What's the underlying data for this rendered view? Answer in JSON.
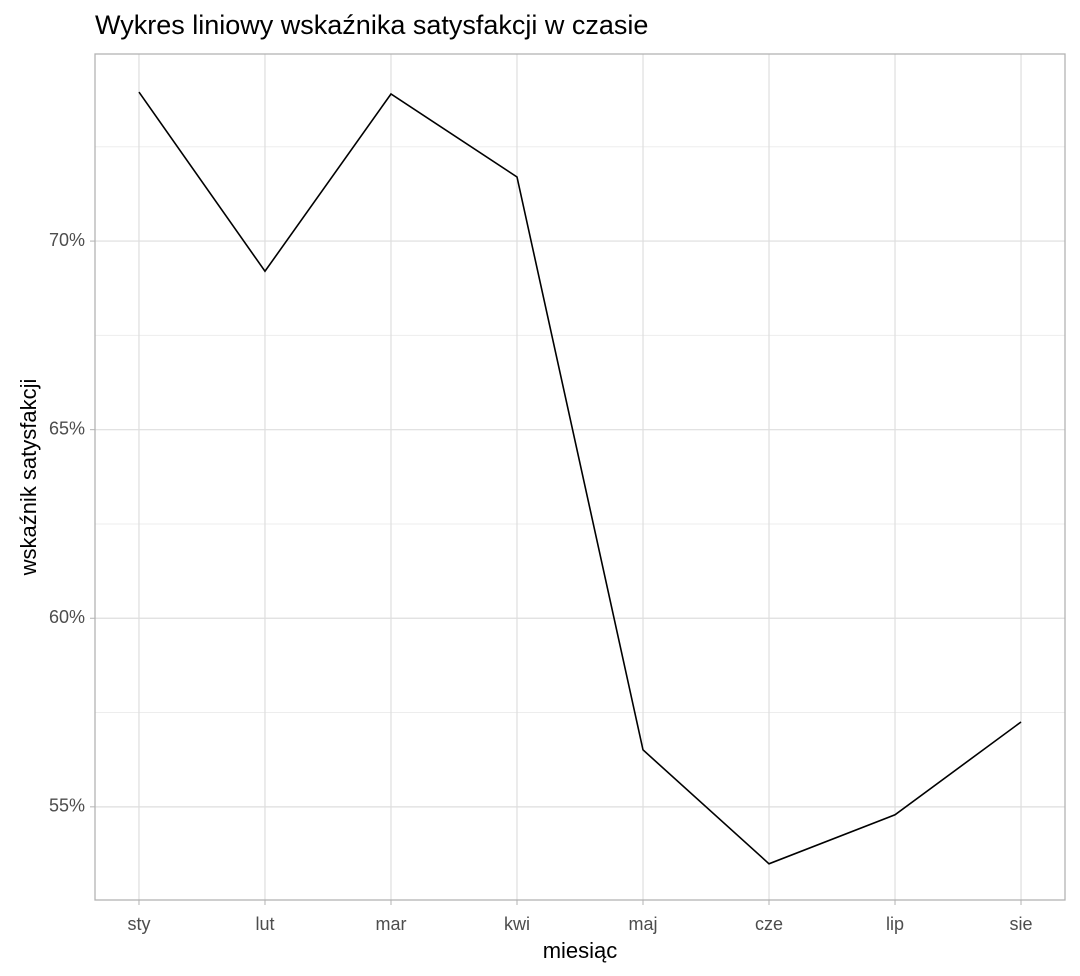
{
  "chart_data": {
    "type": "line",
    "title": "Wykres liniowy wskaźnika satysfakcji w czasie",
    "x_label": "miesiąc",
    "y_label": "wskaźnik satysfakcji",
    "categories": [
      "sty",
      "lut",
      "mar",
      "kwi",
      "maj",
      "cze",
      "lip",
      "sie"
    ],
    "values": [
      73.95,
      69.2,
      73.9,
      71.7,
      56.51,
      53.49,
      54.79,
      57.25
    ],
    "color": "#000000",
    "ylim": [
      52.53,
      74.96
    ],
    "yticks": [
      {
        "value": 55,
        "label": "55%"
      },
      {
        "value": 60,
        "label": "60%"
      },
      {
        "value": 65,
        "label": "65%"
      },
      {
        "value": 70,
        "label": "70%"
      }
    ],
    "minor_yticks": [
      57.5,
      62.5,
      67.5,
      72.5
    ],
    "grid": true
  }
}
